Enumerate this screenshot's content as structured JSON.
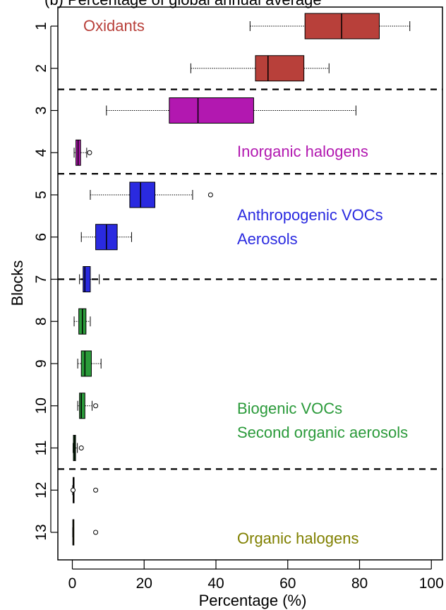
{
  "chart_data": {
    "type": "boxplot",
    "title": "(b) Percentage of global annual average",
    "xlabel": "Percentage (%)",
    "ylabel": "Blocks",
    "xlim": [
      0,
      100
    ],
    "x_ticks": [
      0,
      20,
      40,
      60,
      80,
      100
    ],
    "categories": [
      "1",
      "2",
      "3",
      "4",
      "5",
      "6",
      "7",
      "8",
      "9",
      "10",
      "11",
      "12",
      "13"
    ],
    "boxes": [
      {
        "block": "1",
        "whisker_low": 49.5,
        "q1": 64.8,
        "median": 75.0,
        "q3": 85.5,
        "whisker_high": 94.0,
        "outliers": [],
        "color": "#b8403a"
      },
      {
        "block": "2",
        "whisker_low": 33.0,
        "q1": 51.0,
        "median": 54.5,
        "q3": 64.5,
        "whisker_high": 71.5,
        "outliers": [],
        "color": "#b8403a"
      },
      {
        "block": "3",
        "whisker_low": 9.5,
        "q1": 27.0,
        "median": 35.0,
        "q3": 50.5,
        "whisker_high": 79.0,
        "outliers": [],
        "color": "#b218b0"
      },
      {
        "block": "4",
        "whisker_low": 0.5,
        "q1": 1.0,
        "median": 1.6,
        "q3": 2.3,
        "whisker_high": 4.0,
        "outliers": [
          4.8
        ],
        "color": "#b218b0"
      },
      {
        "block": "5",
        "whisker_low": 5.0,
        "q1": 16.0,
        "median": 19.0,
        "q3": 23.0,
        "whisker_high": 33.5,
        "outliers": [
          38.5
        ],
        "color": "#2a2ae0"
      },
      {
        "block": "6",
        "whisker_low": 2.5,
        "q1": 6.5,
        "median": 9.5,
        "q3": 12.5,
        "whisker_high": 16.5,
        "outliers": [],
        "color": "#2a2ae0"
      },
      {
        "block": "7",
        "whisker_low": 2.0,
        "q1": 3.0,
        "median": 3.5,
        "q3": 5.0,
        "whisker_high": 7.5,
        "outliers": [],
        "color": "#2a2ae0"
      },
      {
        "block": "8",
        "whisker_low": 0.5,
        "q1": 1.8,
        "median": 2.8,
        "q3": 3.8,
        "whisker_high": 5.0,
        "outliers": [],
        "color": "#2a9a3a"
      },
      {
        "block": "9",
        "whisker_low": 1.5,
        "q1": 2.5,
        "median": 3.5,
        "q3": 5.3,
        "whisker_high": 8.0,
        "outliers": [],
        "color": "#2a9a3a"
      },
      {
        "block": "10",
        "whisker_low": 1.5,
        "q1": 2.0,
        "median": 2.5,
        "q3": 3.5,
        "whisker_high": 5.5,
        "outliers": [
          6.5
        ],
        "color": "#2a9a3a"
      },
      {
        "block": "11",
        "whisker_low": 0.2,
        "q1": 0.3,
        "median": 0.6,
        "q3": 0.9,
        "whisker_high": 1.4,
        "outliers": [
          2.5
        ],
        "color": "#2a9a3a"
      },
      {
        "block": "12",
        "whisker_low": 0.1,
        "q1": 0.2,
        "median": 0.25,
        "q3": 0.3,
        "whisker_high": 0.4,
        "outliers": [
          0.2,
          6.5
        ],
        "color": "#808000"
      },
      {
        "block": "13",
        "whisker_low": 0.1,
        "q1": 0.15,
        "median": 0.2,
        "q3": 0.25,
        "whisker_high": 0.3,
        "outliers": [
          6.5
        ],
        "color": "#808000"
      }
    ],
    "separators_between_blocks": [
      2.5,
      4.5,
      7.0,
      11.5
    ],
    "group_labels": [
      {
        "lines": [
          "Oxidants"
        ],
        "color": "#b8403a"
      },
      {
        "lines": [
          "Inorganic halogens"
        ],
        "color": "#b218b0"
      },
      {
        "lines": [
          "Anthropogenic VOCs",
          "Aerosols"
        ],
        "color": "#2a2ae0"
      },
      {
        "lines": [
          "Biogenic VOCs",
          "Second organic aerosols"
        ],
        "color": "#2a9a3a"
      },
      {
        "lines": [
          "Organic halogens"
        ],
        "color": "#808000"
      }
    ],
    "grid": false,
    "legend": "none"
  }
}
